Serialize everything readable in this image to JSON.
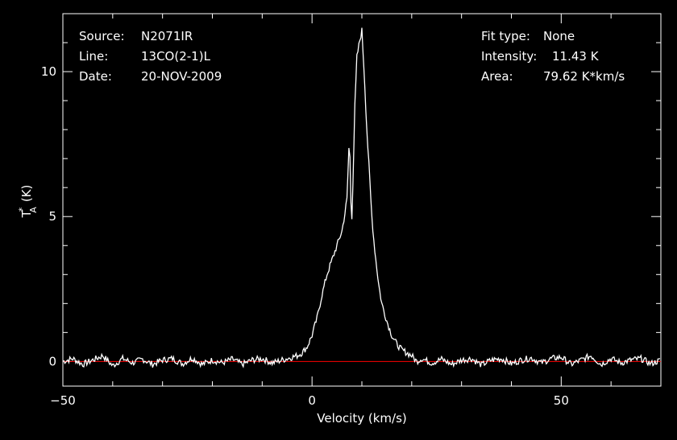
{
  "chart_data": {
    "type": "line",
    "title": "",
    "xlabel": "Velocity (km/s)",
    "ylabel": "T",
    "ylabel_sub": "A",
    "ylabel_sup": "*",
    "ylabel_unit": "(K)",
    "xlim": [
      -50,
      70
    ],
    "ylim": [
      -0.85,
      12.0
    ],
    "xticks": [
      -50,
      0,
      50
    ],
    "yticks": [
      0,
      5,
      10
    ],
    "grid": false,
    "info_left": [
      {
        "label": "Source:",
        "value": "N2071IR"
      },
      {
        "label": "Line:",
        "value": "13CO(2-1)L"
      },
      {
        "label": "Date:",
        "value": "20-NOV-2009"
      }
    ],
    "info_right": [
      {
        "label": "Fit type:",
        "value": "None"
      },
      {
        "label": "Intensity:",
        "value": "11.43 K"
      },
      {
        "label": "Area:",
        "value": "79.62 K*km/s"
      }
    ],
    "baseline": {
      "y": 0,
      "color": "#ff0000"
    },
    "line_color": "#ffffff",
    "series": [
      {
        "x": [
          -50,
          -48,
          -46,
          -44,
          -42,
          -40,
          -38,
          -36,
          -34,
          -32,
          -30,
          -28,
          -26,
          -24,
          -22,
          -20,
          -18,
          -16,
          -14,
          -12,
          -10,
          -8,
          -6,
          -5,
          -4,
          -3,
          -2,
          -1,
          0,
          1,
          2,
          3,
          4,
          5,
          6,
          6.5,
          7,
          7.5,
          7.8,
          8,
          8.3,
          8.6,
          9,
          9.5,
          10,
          10.3,
          10.6,
          11,
          11.5,
          12,
          12.5,
          13,
          13.5,
          14,
          15,
          16,
          17,
          18,
          19,
          20,
          21,
          22,
          24,
          26,
          28,
          30,
          32,
          34,
          36,
          38,
          40,
          42,
          44,
          46,
          48,
          50,
          52,
          54,
          56,
          58,
          60,
          62,
          64,
          66,
          68,
          70
        ],
        "y": [
          0.0,
          0.1,
          -0.1,
          0.05,
          0.2,
          -0.15,
          0.1,
          -0.05,
          0.08,
          -0.1,
          0.05,
          0.1,
          -0.08,
          0.12,
          -0.1,
          0.05,
          -0.05,
          0.08,
          -0.1,
          0.05,
          0.1,
          -0.05,
          0.05,
          0.1,
          0.15,
          0.2,
          0.3,
          0.5,
          0.9,
          1.5,
          2.3,
          3.0,
          3.5,
          4.0,
          4.5,
          5.0,
          5.6,
          7.8,
          5.5,
          5.0,
          6.8,
          8.8,
          10.5,
          11.0,
          11.43,
          10.5,
          9.5,
          8.0,
          6.5,
          5.0,
          4.0,
          3.2,
          2.5,
          2.0,
          1.4,
          0.9,
          0.6,
          0.4,
          0.3,
          0.2,
          0.0,
          0.1,
          -0.05,
          0.08,
          -0.1,
          0.05,
          0.1,
          -0.12,
          0.05,
          0.1,
          -0.08,
          0.05,
          0.12,
          -0.05,
          0.1,
          0.15,
          -0.1,
          0.05,
          0.2,
          -0.1,
          0.1,
          -0.05,
          0.05,
          0.1,
          -0.08,
          0.05
        ]
      }
    ]
  }
}
